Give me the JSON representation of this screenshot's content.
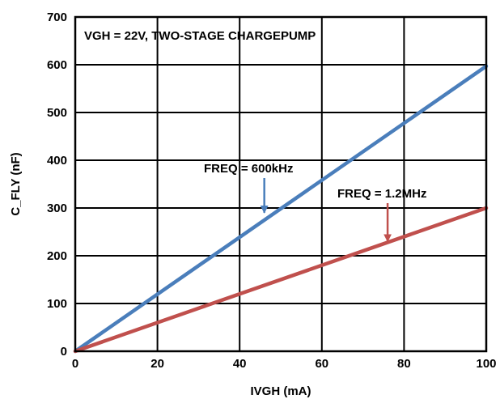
{
  "chart_data": {
    "type": "line",
    "title": "",
    "xlabel": "IVGH (mA)",
    "ylabel": "C_FLY (nF)",
    "xlim": [
      0,
      100
    ],
    "ylim": [
      0,
      700
    ],
    "xticks": [
      0,
      20,
      40,
      60,
      80,
      100
    ],
    "yticks": [
      0,
      100,
      200,
      300,
      400,
      500,
      600,
      700
    ],
    "grid": true,
    "annotations": {
      "condition": "VGH = 22V, TWO-STAGE CHARGEPUMP"
    },
    "series": [
      {
        "name": "FREQ = 600kHz",
        "color": "#4a7ebb",
        "x": [
          0,
          100
        ],
        "y": [
          0,
          597
        ],
        "label_at": [
          46,
          285
        ]
      },
      {
        "name": "FREQ = 1.2MHz",
        "color": "#c0504d",
        "x": [
          0,
          100
        ],
        "y": [
          0,
          300
        ],
        "label_at": [
          76,
          225
        ]
      }
    ]
  }
}
